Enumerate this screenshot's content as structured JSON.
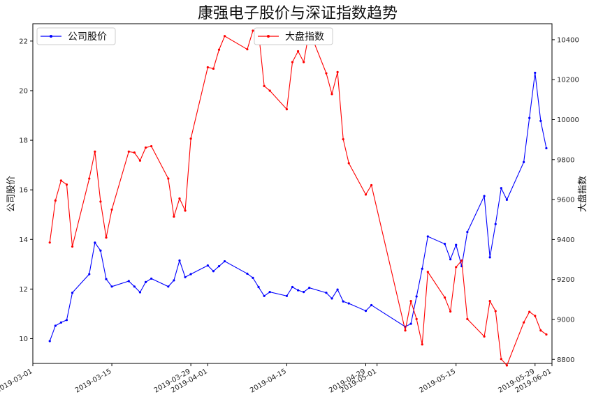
{
  "chart_data": {
    "type": "line",
    "title": "康强电子股价与深证指数趋势",
    "xlabel": "",
    "y_left_label": "公司股价",
    "y_right_label": "大盘指数",
    "x_range": [
      "2019-03-01",
      "2019-06-01"
    ],
    "y_left_range": [
      9.0,
      22.7
    ],
    "y_right_range": [
      8780,
      10480
    ],
    "y_left_ticks": [
      10,
      12,
      14,
      16,
      18,
      20,
      22
    ],
    "y_right_ticks": [
      8800,
      9000,
      9200,
      9400,
      9600,
      9800,
      10000,
      10200,
      10400
    ],
    "x_ticks": [
      "2019-03-01",
      "2019-03-15",
      "2019-03-29",
      "2019-04-01",
      "2019-04-15",
      "2019-04-29",
      "2019-05-01",
      "2019-05-15",
      "2019-05-29",
      "2019-06-01"
    ],
    "grid": false,
    "series": [
      {
        "name": "公司股价",
        "axis": "left",
        "color": "#0000ff",
        "points": [
          [
            "2019-03-04",
            9.9
          ],
          [
            "2019-03-05",
            10.52
          ],
          [
            "2019-03-06",
            10.65
          ],
          [
            "2019-03-07",
            10.75
          ],
          [
            "2019-03-08",
            11.85
          ],
          [
            "2019-03-11",
            12.6
          ],
          [
            "2019-03-12",
            13.87
          ],
          [
            "2019-03-13",
            13.55
          ],
          [
            "2019-03-14",
            12.4
          ],
          [
            "2019-03-15",
            12.1
          ],
          [
            "2019-03-18",
            12.32
          ],
          [
            "2019-03-19",
            12.1
          ],
          [
            "2019-03-20",
            11.87
          ],
          [
            "2019-03-21",
            12.28
          ],
          [
            "2019-03-22",
            12.42
          ],
          [
            "2019-03-25",
            12.1
          ],
          [
            "2019-03-26",
            12.35
          ],
          [
            "2019-03-27",
            13.15
          ],
          [
            "2019-03-28",
            12.48
          ],
          [
            "2019-03-29",
            12.6
          ],
          [
            "2019-04-01",
            12.95
          ],
          [
            "2019-04-02",
            12.72
          ],
          [
            "2019-04-03",
            12.92
          ],
          [
            "2019-04-04",
            13.12
          ],
          [
            "2019-04-08",
            12.62
          ],
          [
            "2019-04-09",
            12.45
          ],
          [
            "2019-04-10",
            12.08
          ],
          [
            "2019-04-11",
            11.72
          ],
          [
            "2019-04-12",
            11.88
          ],
          [
            "2019-04-15",
            11.72
          ],
          [
            "2019-04-16",
            12.08
          ],
          [
            "2019-04-17",
            11.95
          ],
          [
            "2019-04-18",
            11.88
          ],
          [
            "2019-04-19",
            12.05
          ],
          [
            "2019-04-22",
            11.85
          ],
          [
            "2019-04-23",
            11.62
          ],
          [
            "2019-04-24",
            11.98
          ],
          [
            "2019-04-25",
            11.5
          ],
          [
            "2019-04-26",
            11.42
          ],
          [
            "2019-04-29",
            11.12
          ],
          [
            "2019-04-30",
            11.35
          ],
          [
            "2019-05-06",
            10.48
          ],
          [
            "2019-05-07",
            10.6
          ],
          [
            "2019-05-08",
            11.7
          ],
          [
            "2019-05-09",
            12.82
          ],
          [
            "2019-05-10",
            14.12
          ],
          [
            "2019-05-13",
            13.82
          ],
          [
            "2019-05-14",
            13.2
          ],
          [
            "2019-05-15",
            13.78
          ],
          [
            "2019-05-16",
            12.92
          ],
          [
            "2019-05-17",
            14.3
          ],
          [
            "2019-05-20",
            15.75
          ],
          [
            "2019-05-21",
            13.28
          ],
          [
            "2019-05-22",
            14.62
          ],
          [
            "2019-05-23",
            16.07
          ],
          [
            "2019-05-24",
            15.6
          ],
          [
            "2019-05-27",
            17.12
          ],
          [
            "2019-05-28",
            18.9
          ],
          [
            "2019-05-29",
            20.72
          ],
          [
            "2019-05-30",
            18.78
          ],
          [
            "2019-05-31",
            17.68
          ]
        ]
      },
      {
        "name": "大盘指数",
        "axis": "right",
        "color": "#ff0000",
        "points": [
          [
            "2019-03-04",
            9385
          ],
          [
            "2019-03-05",
            9595
          ],
          [
            "2019-03-06",
            9695
          ],
          [
            "2019-03-07",
            9675
          ],
          [
            "2019-03-08",
            9365
          ],
          [
            "2019-03-11",
            9705
          ],
          [
            "2019-03-12",
            9840
          ],
          [
            "2019-03-13",
            9590
          ],
          [
            "2019-03-14",
            9410
          ],
          [
            "2019-03-15",
            9550
          ],
          [
            "2019-03-18",
            9840
          ],
          [
            "2019-03-19",
            9835
          ],
          [
            "2019-03-20",
            9795
          ],
          [
            "2019-03-21",
            9860
          ],
          [
            "2019-03-22",
            9867
          ],
          [
            "2019-03-25",
            9705
          ],
          [
            "2019-03-26",
            9515
          ],
          [
            "2019-03-27",
            9605
          ],
          [
            "2019-03-28",
            9545
          ],
          [
            "2019-03-29",
            9905
          ],
          [
            "2019-04-01",
            10262
          ],
          [
            "2019-04-02",
            10255
          ],
          [
            "2019-04-03",
            10350
          ],
          [
            "2019-04-04",
            10418
          ],
          [
            "2019-04-08",
            10352
          ],
          [
            "2019-04-09",
            10445
          ],
          [
            "2019-04-10",
            10440
          ],
          [
            "2019-04-11",
            10168
          ],
          [
            "2019-04-12",
            10145
          ],
          [
            "2019-04-15",
            10052
          ],
          [
            "2019-04-16",
            10288
          ],
          [
            "2019-04-17",
            10342
          ],
          [
            "2019-04-18",
            10288
          ],
          [
            "2019-04-19",
            10445
          ],
          [
            "2019-04-22",
            10232
          ],
          [
            "2019-04-23",
            10128
          ],
          [
            "2019-04-24",
            10238
          ],
          [
            "2019-04-25",
            9902
          ],
          [
            "2019-04-26",
            9782
          ],
          [
            "2019-04-29",
            9625
          ],
          [
            "2019-04-30",
            9672
          ],
          [
            "2019-05-06",
            8945
          ],
          [
            "2019-05-07",
            9092
          ],
          [
            "2019-05-08",
            9002
          ],
          [
            "2019-05-09",
            8875
          ],
          [
            "2019-05-10",
            9238
          ],
          [
            "2019-05-13",
            9110
          ],
          [
            "2019-05-14",
            9040
          ],
          [
            "2019-05-15",
            9262
          ],
          [
            "2019-05-16",
            9295
          ],
          [
            "2019-05-17",
            9002
          ],
          [
            "2019-05-20",
            8915
          ],
          [
            "2019-05-21",
            9092
          ],
          [
            "2019-05-22",
            9042
          ],
          [
            "2019-05-23",
            8802
          ],
          [
            "2019-05-24",
            8770
          ],
          [
            "2019-05-27",
            8985
          ],
          [
            "2019-05-28",
            9038
          ],
          [
            "2019-05-29",
            9018
          ],
          [
            "2019-05-30",
            8945
          ],
          [
            "2019-05-31",
            8925
          ]
        ]
      }
    ],
    "legend": [
      {
        "name": "公司股价",
        "placement": "top-left"
      },
      {
        "name": "大盘指数",
        "placement": "top-center"
      }
    ]
  }
}
